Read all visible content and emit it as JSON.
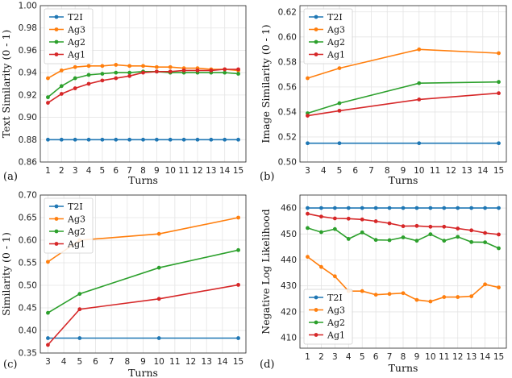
{
  "colors": {
    "T2I": "#1f77b4",
    "Ag3": "#ff7f0e",
    "Ag2": "#2ca02c",
    "Ag1": "#d62728"
  },
  "legend_names": [
    "T2I",
    "Ag3",
    "Ag2",
    "Ag1"
  ],
  "chart_data": [
    {
      "id": "a",
      "panel_label": "(a)",
      "type": "line",
      "xlabel": "Turns",
      "ylabel": "Text Similarity (0 - 1)",
      "x": [
        1,
        2,
        3,
        4,
        5,
        6,
        7,
        8,
        9,
        10,
        11,
        12,
        13,
        14,
        15
      ],
      "xticks": [
        1,
        2,
        3,
        4,
        5,
        6,
        7,
        8,
        9,
        10,
        11,
        12,
        13,
        14,
        15
      ],
      "ylim": [
        0.86,
        1.0
      ],
      "yticks": [
        "0.86",
        "0.88",
        "0.90",
        "0.92",
        "0.94",
        "0.96",
        "0.98",
        "1.00"
      ],
      "legend": "top-left",
      "series": [
        {
          "name": "T2I",
          "values": [
            0.88,
            0.88,
            0.88,
            0.88,
            0.88,
            0.88,
            0.88,
            0.88,
            0.88,
            0.88,
            0.88,
            0.88,
            0.88,
            0.88,
            0.88
          ]
        },
        {
          "name": "Ag3",
          "values": [
            0.935,
            0.942,
            0.945,
            0.946,
            0.946,
            0.947,
            0.946,
            0.946,
            0.945,
            0.945,
            0.944,
            0.944,
            0.943,
            0.943,
            0.942
          ]
        },
        {
          "name": "Ag2",
          "values": [
            0.918,
            0.928,
            0.935,
            0.938,
            0.939,
            0.94,
            0.94,
            0.941,
            0.941,
            0.94,
            0.94,
            0.94,
            0.94,
            0.94,
            0.939
          ]
        },
        {
          "name": "Ag1",
          "values": [
            0.913,
            0.921,
            0.926,
            0.93,
            0.933,
            0.935,
            0.937,
            0.94,
            0.941,
            0.941,
            0.942,
            0.942,
            0.942,
            0.943,
            0.943
          ]
        }
      ]
    },
    {
      "id": "b",
      "panel_label": "(b)",
      "type": "line",
      "xlabel": "Turns",
      "ylabel": "Image Similarity (0 - 1)",
      "x": [
        3,
        5,
        10,
        15
      ],
      "xticks": [
        3,
        4,
        5,
        6,
        7,
        8,
        9,
        10,
        11,
        12,
        13,
        14,
        15
      ],
      "ylim": [
        0.5,
        0.625
      ],
      "yticks": [
        "0.50",
        "0.52",
        "0.54",
        "0.56",
        "0.58",
        "0.60",
        "0.62"
      ],
      "legend": "top-left",
      "series": [
        {
          "name": "T2I",
          "values": [
            0.515,
            0.515,
            0.515,
            0.515
          ]
        },
        {
          "name": "Ag3",
          "values": [
            0.567,
            0.575,
            0.59,
            0.587
          ]
        },
        {
          "name": "Ag2",
          "values": [
            0.539,
            0.547,
            0.563,
            0.564
          ]
        },
        {
          "name": "Ag1",
          "values": [
            0.537,
            0.541,
            0.55,
            0.555
          ]
        }
      ]
    },
    {
      "id": "c",
      "panel_label": "(c)",
      "type": "line",
      "xlabel": "Turns",
      "ylabel": "Similarity (0 - 1)",
      "x": [
        3,
        5,
        10,
        15
      ],
      "xticks": [
        3,
        4,
        5,
        6,
        7,
        8,
        9,
        10,
        11,
        12,
        13,
        14,
        15
      ],
      "ylim": [
        0.35,
        0.7
      ],
      "yticks": [
        "0.35",
        "0.40",
        "0.45",
        "0.50",
        "0.55",
        "0.60",
        "0.65",
        "0.70"
      ],
      "legend": "top-left",
      "series": [
        {
          "name": "T2I",
          "values": [
            0.383,
            0.383,
            0.383,
            0.383
          ]
        },
        {
          "name": "Ag3",
          "values": [
            0.552,
            0.6,
            0.614,
            0.65
          ]
        },
        {
          "name": "Ag2",
          "values": [
            0.439,
            0.481,
            0.539,
            0.578
          ]
        },
        {
          "name": "Ag1",
          "values": [
            0.368,
            0.447,
            0.47,
            0.501
          ]
        }
      ]
    },
    {
      "id": "d",
      "panel_label": "(d)",
      "type": "line",
      "xlabel": "Turns",
      "ylabel": "Negative Log Likelihood",
      "x": [
        1,
        2,
        3,
        4,
        5,
        6,
        7,
        8,
        9,
        10,
        11,
        12,
        13,
        14,
        15
      ],
      "xticks": [
        1,
        2,
        3,
        4,
        5,
        6,
        7,
        8,
        9,
        10,
        11,
        12,
        13,
        14,
        15
      ],
      "ylim": [
        406,
        465
      ],
      "yticks": [
        "410",
        "420",
        "430",
        "440",
        "450",
        "460"
      ],
      "legend": "bottom-left",
      "series": [
        {
          "name": "T2I",
          "values": [
            460,
            460,
            460,
            460,
            460,
            460,
            460,
            460,
            460,
            460,
            460,
            460,
            460,
            460,
            460
          ]
        },
        {
          "name": "Ag3",
          "values": [
            441.2,
            437.3,
            433.7,
            428.0,
            428.0,
            426.6,
            426.9,
            427.2,
            424.6,
            424.0,
            425.7,
            425.7,
            426.0,
            430.6,
            429.4
          ]
        },
        {
          "name": "Ag2",
          "values": [
            452.3,
            450.7,
            451.9,
            448.1,
            450.6,
            447.7,
            447.6,
            448.7,
            447.4,
            449.9,
            447.4,
            448.9,
            446.9,
            446.8,
            444.5
          ]
        },
        {
          "name": "Ag1",
          "values": [
            457.8,
            456.7,
            456.0,
            455.9,
            455.6,
            454.9,
            454.1,
            453.0,
            453.1,
            452.8,
            452.8,
            452.1,
            451.4,
            450.4,
            449.8
          ]
        }
      ]
    }
  ]
}
